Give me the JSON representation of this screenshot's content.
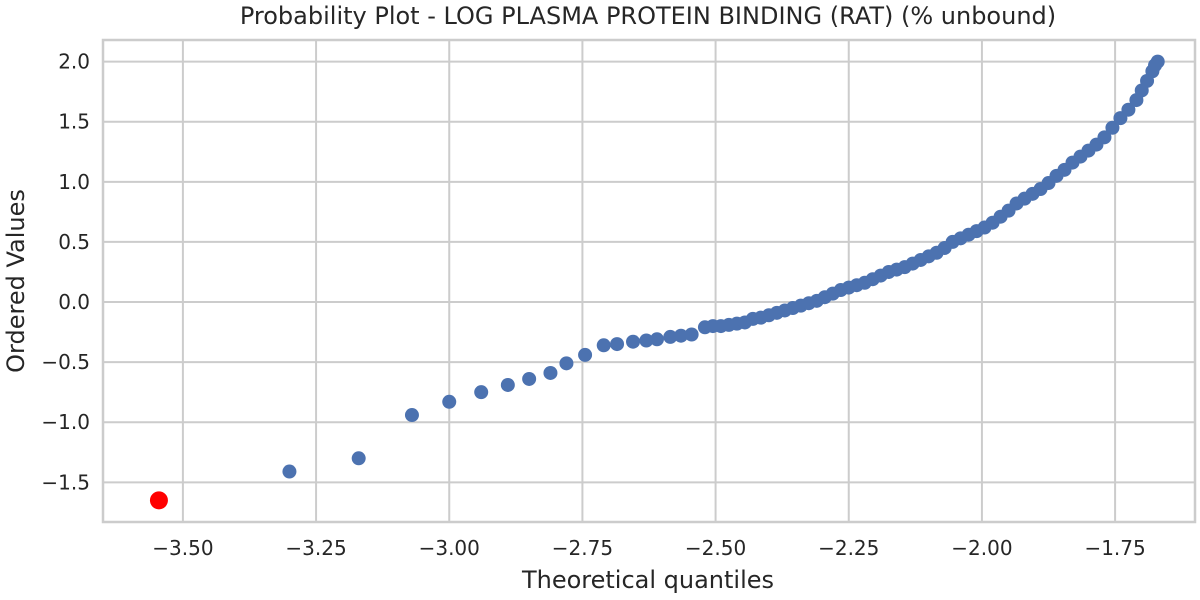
{
  "chart_data": {
    "type": "scatter",
    "title": "Probability Plot - LOG PLASMA PROTEIN BINDING (RAT) (% unbound)",
    "xlabel": "Theoretical quantiles",
    "ylabel": "Ordered Values",
    "xlim": [
      -3.65,
      -1.6
    ],
    "ylim": [
      -1.83,
      2.18
    ],
    "xticks": [
      -3.5,
      -3.25,
      -3.0,
      -2.75,
      -2.5,
      -2.25,
      -2.0,
      -1.75
    ],
    "xtick_labels": [
      "−3.50",
      "−3.25",
      "−3.00",
      "−2.75",
      "−2.50",
      "−2.25",
      "−2.00",
      "−1.75"
    ],
    "yticks": [
      -1.5,
      -1.0,
      -0.5,
      0.0,
      0.5,
      1.0,
      1.5,
      2.0
    ],
    "ytick_labels": [
      "−1.5",
      "−1.0",
      "−0.5",
      "0.0",
      "0.5",
      "1.0",
      "1.5",
      "2.0"
    ],
    "grid": true,
    "colors": {
      "points": "#4c72b0",
      "highlight": "#ff0000"
    },
    "highlight_point": {
      "x": -3.545,
      "y": -1.65
    },
    "points": [
      [
        -3.3,
        -1.41
      ],
      [
        -3.17,
        -1.3
      ],
      [
        -3.07,
        -0.94
      ],
      [
        -3.0,
        -0.83
      ],
      [
        -2.94,
        -0.75
      ],
      [
        -2.89,
        -0.69
      ],
      [
        -2.85,
        -0.64
      ],
      [
        -2.81,
        -0.59
      ],
      [
        -2.78,
        -0.51
      ],
      [
        -2.745,
        -0.44
      ],
      [
        -2.71,
        -0.36
      ],
      [
        -2.685,
        -0.35
      ],
      [
        -2.655,
        -0.33
      ],
      [
        -2.63,
        -0.32
      ],
      [
        -2.61,
        -0.31
      ],
      [
        -2.585,
        -0.29
      ],
      [
        -2.565,
        -0.28
      ],
      [
        -2.545,
        -0.27
      ],
      [
        -2.52,
        -0.21
      ],
      [
        -2.505,
        -0.2
      ],
      [
        -2.49,
        -0.2
      ],
      [
        -2.475,
        -0.19
      ],
      [
        -2.46,
        -0.18
      ],
      [
        -2.445,
        -0.17
      ],
      [
        -2.43,
        -0.14
      ],
      [
        -2.415,
        -0.13
      ],
      [
        -2.4,
        -0.11
      ],
      [
        -2.385,
        -0.09
      ],
      [
        -2.37,
        -0.07
      ],
      [
        -2.355,
        -0.05
      ],
      [
        -2.34,
        -0.03
      ],
      [
        -2.325,
        -0.01
      ],
      [
        -2.31,
        0.01
      ],
      [
        -2.295,
        0.04
      ],
      [
        -2.28,
        0.07
      ],
      [
        -2.265,
        0.1
      ],
      [
        -2.25,
        0.12
      ],
      [
        -2.235,
        0.14
      ],
      [
        -2.22,
        0.16
      ],
      [
        -2.205,
        0.19
      ],
      [
        -2.19,
        0.22
      ],
      [
        -2.175,
        0.25
      ],
      [
        -2.16,
        0.27
      ],
      [
        -2.145,
        0.29
      ],
      [
        -2.13,
        0.32
      ],
      [
        -2.115,
        0.35
      ],
      [
        -2.1,
        0.38
      ],
      [
        -2.085,
        0.41
      ],
      [
        -2.07,
        0.45
      ],
      [
        -2.055,
        0.5
      ],
      [
        -2.04,
        0.53
      ],
      [
        -2.025,
        0.56
      ],
      [
        -2.01,
        0.59
      ],
      [
        -1.995,
        0.62
      ],
      [
        -1.98,
        0.66
      ],
      [
        -1.965,
        0.71
      ],
      [
        -1.95,
        0.76
      ],
      [
        -1.935,
        0.82
      ],
      [
        -1.92,
        0.86
      ],
      [
        -1.905,
        0.9
      ],
      [
        -1.89,
        0.94
      ],
      [
        -1.875,
        0.99
      ],
      [
        -1.86,
        1.05
      ],
      [
        -1.845,
        1.1
      ],
      [
        -1.83,
        1.16
      ],
      [
        -1.815,
        1.21
      ],
      [
        -1.8,
        1.26
      ],
      [
        -1.785,
        1.31
      ],
      [
        -1.77,
        1.37
      ],
      [
        -1.755,
        1.45
      ],
      [
        -1.74,
        1.53
      ],
      [
        -1.725,
        1.6
      ],
      [
        -1.71,
        1.68
      ],
      [
        -1.7,
        1.76
      ],
      [
        -1.69,
        1.84
      ],
      [
        -1.68,
        1.92
      ],
      [
        -1.675,
        1.97
      ],
      [
        -1.67,
        2.0
      ]
    ]
  }
}
